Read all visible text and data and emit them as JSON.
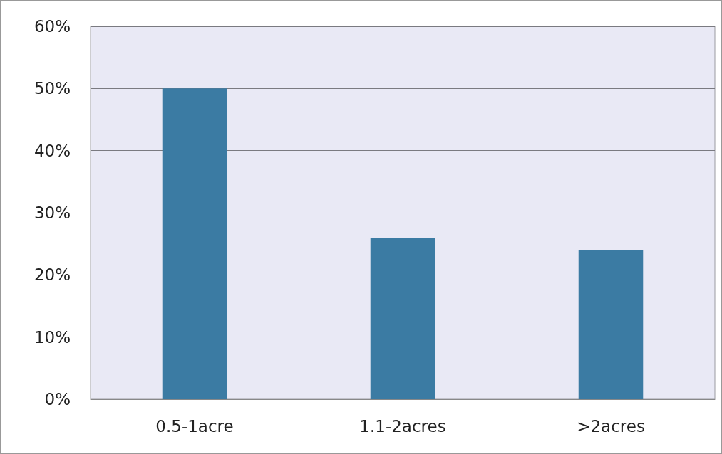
{
  "chart_data": {
    "type": "bar",
    "categories": [
      "0.5-1acre",
      "1.1-2acres",
      ">2acres"
    ],
    "values": [
      50,
      26,
      24
    ],
    "color": "#3b7ba3",
    "ylim": [
      0,
      60
    ],
    "yticks": [
      {
        "value": 0,
        "label": "0%"
      },
      {
        "value": 10,
        "label": "10%"
      },
      {
        "value": 20,
        "label": "20%"
      },
      {
        "value": 30,
        "label": "30%"
      },
      {
        "value": 40,
        "label": "40%"
      },
      {
        "value": 50,
        "label": "50%"
      },
      {
        "value": 60,
        "label": "60%"
      }
    ],
    "grid": "y"
  }
}
